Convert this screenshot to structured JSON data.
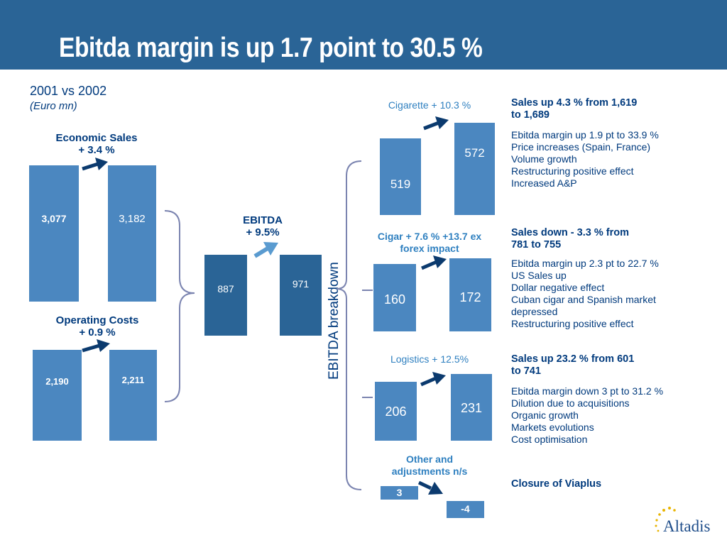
{
  "header": {
    "title": "Ebitda margin is up 1.7 point to 30.5 %"
  },
  "subtitle": {
    "line1": "2001 vs 2002",
    "line2": "(Euro mn)"
  },
  "colors": {
    "header": "#2a6496",
    "bar_light": "#4b87c0",
    "bar_dark": "#2a6496",
    "text_navy": "#003a7d",
    "label_blue": "#2f80c0",
    "bracket": "#7b84b0"
  },
  "left_panel": {
    "economic_sales": {
      "label_line1": "Economic Sales",
      "label_line2": "+ 3.4 %"
    },
    "operating_costs": {
      "label_line1": "Operating Costs",
      "label_line2": "+ 0.9 %"
    },
    "ebitda": {
      "label_line1": "EBITDA",
      "label_line2": "+ 9.5%"
    }
  },
  "breakdown_label": "EBITDA breakdown",
  "segments": {
    "cigarette": {
      "label": "Cigarette + 10.3 %",
      "heading_line1": "Sales up 4.3 % from 1,619",
      "heading_line2": "to 1,689",
      "details": [
        "Ebitda margin up 1.9 pt to 33.9 %",
        "Price increases (Spain, France)",
        "Volume growth",
        "Restructuring positive effect",
        "Increased A&P"
      ]
    },
    "cigar": {
      "label_line1": "Cigar  + 7.6 % +13.7 ex",
      "label_line2": "forex impact",
      "heading_line1": "Sales down - 3.3 % from",
      "heading_line2": "781 to 755",
      "details": [
        "Ebitda margin up 2.3 pt to 22.7 %",
        "US Sales up",
        "Dollar negative effect",
        "Cuban cigar and Spanish market",
        "depressed",
        "Restructuring positive effect"
      ]
    },
    "logistics": {
      "label": "Logistics + 12.5%",
      "heading_line1": "Sales up 23.2 % from 601",
      "heading_line2": "to 741",
      "details": [
        "Ebitda margin down 3 pt to 31.2 %",
        "Dilution due to acquisitions",
        "Organic growth",
        "Markets evolutions",
        "Cost optimisation"
      ]
    },
    "other": {
      "label_line1": "Other and",
      "label_line2": "adjustments n/s",
      "heading": "Closure of Viaplus"
    }
  },
  "logo": {
    "text": "Altadis"
  },
  "chart_data": [
    {
      "type": "bar",
      "title": "Economic Sales",
      "categories": [
        "2001",
        "2002"
      ],
      "values": [
        3077,
        3182
      ],
      "labels": [
        "3,077",
        "3,182"
      ]
    },
    {
      "type": "bar",
      "title": "Operating Costs",
      "categories": [
        "2001",
        "2002"
      ],
      "values": [
        2190,
        2211
      ],
      "labels": [
        "2,190",
        "2,211"
      ]
    },
    {
      "type": "bar",
      "title": "EBITDA",
      "categories": [
        "2001",
        "2002"
      ],
      "values": [
        887,
        971
      ],
      "labels": [
        "887",
        "971"
      ]
    },
    {
      "type": "bar",
      "title": "Cigarette",
      "categories": [
        "2001",
        "2002"
      ],
      "values": [
        519,
        572
      ],
      "labels": [
        "519",
        "572"
      ]
    },
    {
      "type": "bar",
      "title": "Cigar",
      "categories": [
        "2001",
        "2002"
      ],
      "values": [
        160,
        172
      ],
      "labels": [
        "160",
        "172"
      ]
    },
    {
      "type": "bar",
      "title": "Logistics",
      "categories": [
        "2001",
        "2002"
      ],
      "values": [
        206,
        231
      ],
      "labels": [
        "206",
        "231"
      ]
    },
    {
      "type": "bar",
      "title": "Other and adjustments",
      "categories": [
        "2001",
        "2002"
      ],
      "values": [
        3,
        -4
      ],
      "labels": [
        "3",
        "-4"
      ]
    }
  ]
}
